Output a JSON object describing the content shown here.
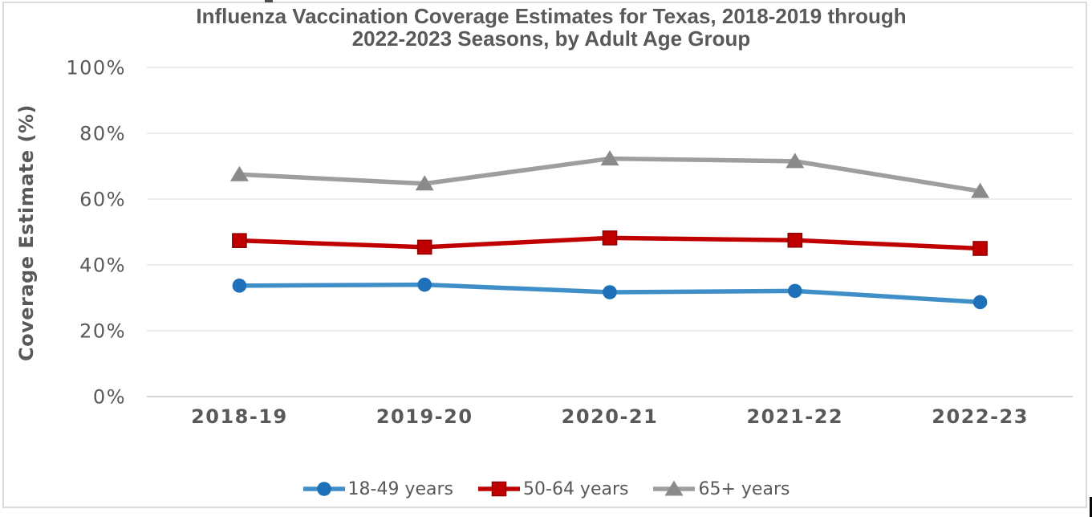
{
  "chart": {
    "title_lines": [
      "Influenza Vaccination Coverage Estimates for Texas, 2018-2019 through",
      "2022-2023 Seasons, by Adult Age Group"
    ],
    "y_axis_title": "Coverage Estimate (%)",
    "colors": {
      "text": "#595959",
      "gridline": "#E7E7E7",
      "axis_line": "#C9C9C9",
      "chart_border": "#D9D9D9"
    }
  },
  "chart_data": {
    "type": "line",
    "title": "Influenza Vaccination Coverage Estimates for Texas, 2018-2019 through 2022-2023 Seasons, by Adult Age Group",
    "xlabel": "",
    "ylabel": "Coverage Estimate (%)",
    "categories": [
      "2018-19",
      "2019-20",
      "2020-21",
      "2021-22",
      "2022-23"
    ],
    "series": [
      {
        "name": "18-49 years",
        "values": [
          33.7,
          34.0,
          31.7,
          32.1,
          28.7
        ],
        "marker": "circle",
        "line_color": "#3E8EC8",
        "marker_color": "#1E71B8",
        "marker_stroke": "#1E71B8"
      },
      {
        "name": "50-64 years",
        "values": [
          47.4,
          45.4,
          48.2,
          47.5,
          45.0
        ],
        "marker": "square",
        "line_color": "#C00000",
        "marker_color": "#C00000",
        "marker_stroke": "#900000"
      },
      {
        "name": "65+ years",
        "values": [
          67.5,
          64.7,
          72.3,
          71.5,
          62.4
        ],
        "marker": "triangle",
        "line_color": "#9E9E9E",
        "marker_color": "#8A8A8A",
        "marker_stroke": "#8A8A8A"
      }
    ],
    "ylim": [
      0,
      100
    ],
    "y_ticks": [
      "0%",
      "20%",
      "40%",
      "60%",
      "80%",
      "100%"
    ],
    "grid": "horizontal",
    "legend_position": "bottom"
  }
}
